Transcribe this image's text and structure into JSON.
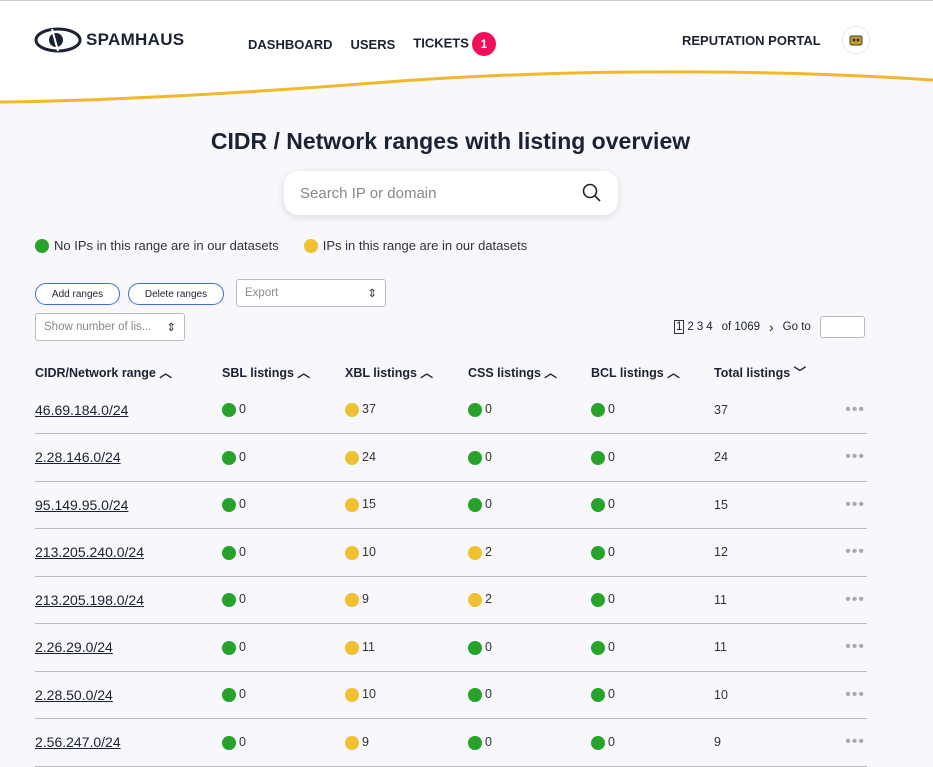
{
  "header": {
    "logo": "SPAMHAUS",
    "nav": [
      "DASHBOARD",
      "USERS",
      "TICKETS"
    ],
    "tickets_badge": "1",
    "portal": "REPUTATION PORTAL"
  },
  "page_title": "CIDR / Network ranges with listing overview",
  "search": {
    "placeholder": "Search IP or domain"
  },
  "legend": {
    "green": "No IPs in this range are in our datasets",
    "yellow": "IPs in this range are in our datasets"
  },
  "toolbar": {
    "add": "Add ranges",
    "delete": "Delete ranges",
    "export": "Export",
    "show_number": "Show number of lis..."
  },
  "pagination": {
    "pages": [
      "1",
      "2",
      "3",
      "4"
    ],
    "of": "of 1069",
    "next": "›",
    "goto": "Go to"
  },
  "columns": [
    "CIDR/Network range",
    "SBL listings",
    "XBL listings",
    "CSS listings",
    "BCL listings",
    "Total listings"
  ],
  "colors": {
    "green": "#27a22a",
    "yellow": "#f0c030",
    "accent": "#f0105a"
  },
  "rows": [
    {
      "range": "46.69.184.0/24",
      "sbl": "0",
      "xbl": "37",
      "css": "0",
      "bcl": "0",
      "total": "37"
    },
    {
      "range": "2.28.146.0/24",
      "sbl": "0",
      "xbl": "24",
      "css": "0",
      "bcl": "0",
      "total": "24"
    },
    {
      "range": "95.149.95.0/24",
      "sbl": "0",
      "xbl": "15",
      "css": "0",
      "bcl": "0",
      "total": "15"
    },
    {
      "range": "213.205.240.0/24",
      "sbl": "0",
      "xbl": "10",
      "css": "2",
      "bcl": "0",
      "total": "12"
    },
    {
      "range": "213.205.198.0/24",
      "sbl": "0",
      "xbl": "9",
      "css": "2",
      "bcl": "0",
      "total": "11"
    },
    {
      "range": "2.26.29.0/24",
      "sbl": "0",
      "xbl": "11",
      "css": "0",
      "bcl": "0",
      "total": "11"
    },
    {
      "range": "2.28.50.0/24",
      "sbl": "0",
      "xbl": "10",
      "css": "0",
      "bcl": "0",
      "total": "10"
    },
    {
      "range": "2.56.247.0/24",
      "sbl": "0",
      "xbl": "9",
      "css": "0",
      "bcl": "0",
      "total": "9"
    }
  ]
}
